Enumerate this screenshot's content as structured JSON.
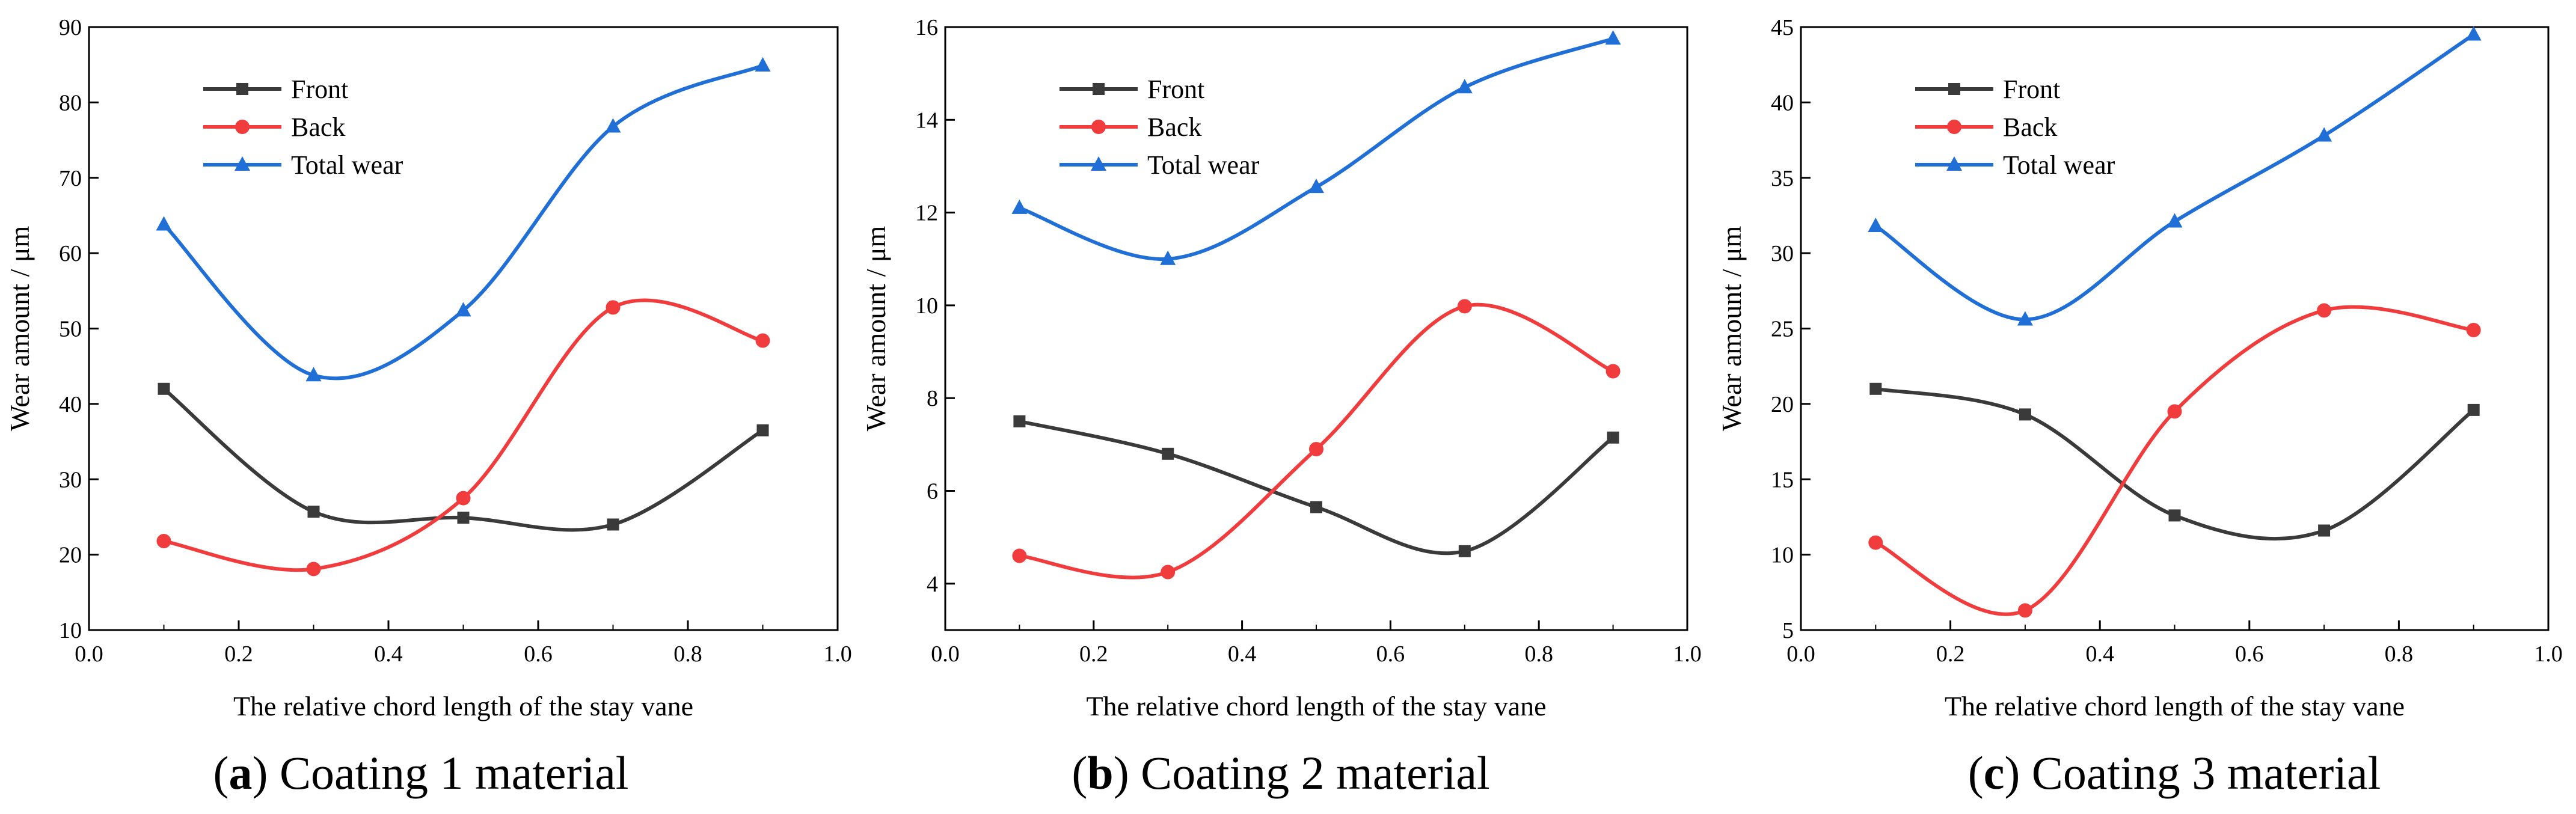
{
  "chart_data": [
    {
      "type": "line",
      "caption_prefix": "(",
      "caption_letter": "a",
      "caption_rest": ") Coating 1 material",
      "xlabel": "The relative chord length of the stay vane",
      "ylabel": "Wear amount / μm",
      "xlim": [
        0.0,
        1.0
      ],
      "ylim": [
        10,
        90
      ],
      "xticks": [
        "0.0",
        "0.2",
        "0.4",
        "0.6",
        "0.8",
        "1.0"
      ],
      "yticks": [
        "10",
        "20",
        "30",
        "40",
        "50",
        "60",
        "70",
        "80",
        "90"
      ],
      "x": [
        0.1,
        0.3,
        0.5,
        0.7,
        0.9
      ],
      "legend_position": "top-left",
      "series": [
        {
          "name": "Front",
          "color": "#3a3a3a",
          "marker": "square",
          "values": [
            42.0,
            25.7,
            24.9,
            24.0,
            36.5
          ]
        },
        {
          "name": "Back",
          "color": "#f03c3c",
          "marker": "circle",
          "values": [
            21.8,
            18.1,
            27.5,
            52.8,
            48.4
          ]
        },
        {
          "name": "Total wear",
          "color": "#1f6fd6",
          "marker": "triangle",
          "values": [
            63.8,
            43.8,
            52.4,
            76.8,
            84.9
          ]
        }
      ]
    },
    {
      "type": "line",
      "caption_prefix": "(",
      "caption_letter": "b",
      "caption_rest": ") Coating 2 material",
      "xlabel": "The relative chord length of the stay vane",
      "ylabel": "Wear amount / μm",
      "xlim": [
        0.0,
        1.0
      ],
      "ylim": [
        3,
        16
      ],
      "xticks": [
        "0.0",
        "0.2",
        "0.4",
        "0.6",
        "0.8",
        "1.0"
      ],
      "yticks": [
        "4",
        "6",
        "8",
        "10",
        "12",
        "14",
        "16"
      ],
      "x": [
        0.1,
        0.3,
        0.5,
        0.7,
        0.9
      ],
      "legend_position": "top-left",
      "series": [
        {
          "name": "Front",
          "color": "#3a3a3a",
          "marker": "square",
          "values": [
            7.5,
            6.8,
            5.65,
            4.7,
            7.15
          ]
        },
        {
          "name": "Back",
          "color": "#f03c3c",
          "marker": "circle",
          "values": [
            4.6,
            4.25,
            6.9,
            9.98,
            8.58
          ]
        },
        {
          "name": "Total wear",
          "color": "#1f6fd6",
          "marker": "triangle",
          "values": [
            12.1,
            11.0,
            12.55,
            14.7,
            15.75
          ]
        }
      ]
    },
    {
      "type": "line",
      "caption_prefix": "(",
      "caption_letter": "c",
      "caption_rest": ") Coating 3 material",
      "xlabel": "The relative chord length of the stay vane",
      "ylabel": "Wear amount / μm",
      "xlim": [
        0.0,
        1.0
      ],
      "ylim": [
        5,
        45
      ],
      "xticks": [
        "0.0",
        "0.2",
        "0.4",
        "0.6",
        "0.8",
        "1.0"
      ],
      "yticks": [
        "5",
        "10",
        "15",
        "20",
        "25",
        "30",
        "35",
        "40",
        "45"
      ],
      "x": [
        0.1,
        0.3,
        0.5,
        0.7,
        0.9
      ],
      "legend_position": "top-left",
      "series": [
        {
          "name": "Front",
          "color": "#3a3a3a",
          "marker": "square",
          "values": [
            21.0,
            19.3,
            12.6,
            11.6,
            19.6
          ]
        },
        {
          "name": "Back",
          "color": "#f03c3c",
          "marker": "circle",
          "values": [
            10.8,
            6.3,
            19.5,
            26.2,
            24.9
          ]
        },
        {
          "name": "Total wear",
          "color": "#1f6fd6",
          "marker": "triangle",
          "values": [
            31.8,
            25.6,
            32.1,
            37.8,
            44.5
          ]
        }
      ]
    }
  ]
}
